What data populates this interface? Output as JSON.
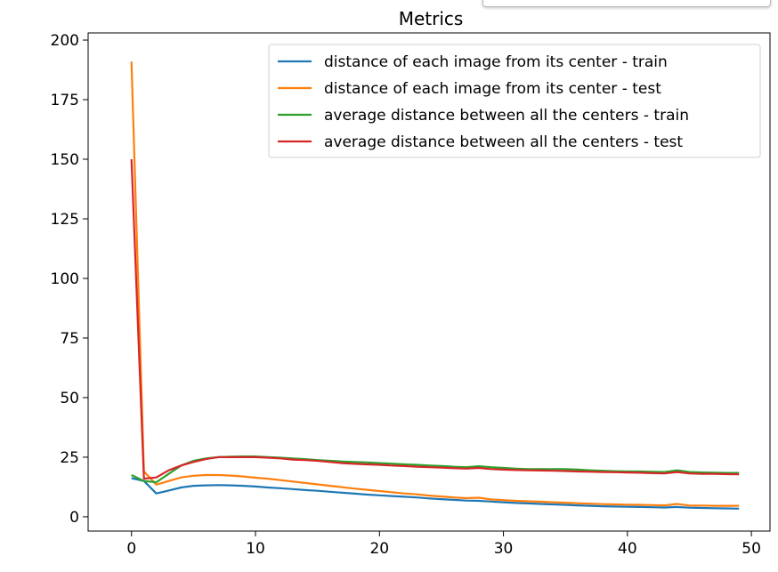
{
  "chart_data": {
    "type": "line",
    "title": "Metrics",
    "xlabel": "",
    "ylabel": "",
    "xlim": [
      -3.5,
      51.5
    ],
    "ylim": [
      -6,
      203
    ],
    "xticks": [
      0,
      10,
      20,
      30,
      40,
      50
    ],
    "yticks": [
      0,
      25,
      50,
      75,
      100,
      125,
      150,
      175,
      200
    ],
    "grid": false,
    "legend_position": "top-right",
    "series": [
      {
        "name": "distance of each image from its center - train",
        "color": "#1f77b4",
        "x": [
          0,
          1,
          2,
          3,
          4,
          5,
          6,
          7,
          8,
          9,
          10,
          11,
          12,
          13,
          14,
          15,
          16,
          17,
          18,
          19,
          20,
          21,
          22,
          23,
          24,
          25,
          26,
          27,
          28,
          29,
          30,
          31,
          32,
          33,
          34,
          35,
          36,
          37,
          38,
          39,
          40,
          41,
          42,
          43,
          44,
          45,
          46,
          47,
          48,
          49
        ],
        "values": [
          16.2,
          15.0,
          9.8,
          11.0,
          12.3,
          13.0,
          13.2,
          13.3,
          13.2,
          13.0,
          12.7,
          12.3,
          12.0,
          11.6,
          11.2,
          10.9,
          10.5,
          10.1,
          9.7,
          9.3,
          9.0,
          8.7,
          8.4,
          8.1,
          7.7,
          7.4,
          7.1,
          6.8,
          6.7,
          6.4,
          6.1,
          5.8,
          5.6,
          5.4,
          5.2,
          5.0,
          4.8,
          4.6,
          4.4,
          4.3,
          4.2,
          4.1,
          4.0,
          3.9,
          4.1,
          3.8,
          3.7,
          3.6,
          3.5,
          3.4
        ]
      },
      {
        "name": "distance of each image from its center - test",
        "color": "#ff7f0e",
        "x": [
          0,
          1,
          2,
          3,
          4,
          5,
          6,
          7,
          8,
          9,
          10,
          11,
          12,
          13,
          14,
          15,
          16,
          17,
          18,
          19,
          20,
          21,
          22,
          23,
          24,
          25,
          26,
          27,
          28,
          29,
          30,
          31,
          32,
          33,
          34,
          35,
          36,
          37,
          38,
          39,
          40,
          41,
          42,
          43,
          44,
          45,
          46,
          47,
          48,
          49
        ],
        "values": [
          191,
          19.0,
          13.5,
          15.0,
          16.5,
          17.2,
          17.5,
          17.5,
          17.3,
          16.9,
          16.4,
          16.0,
          15.4,
          14.8,
          14.2,
          13.6,
          13.0,
          12.4,
          11.8,
          11.3,
          10.8,
          10.3,
          9.8,
          9.4,
          8.9,
          8.5,
          8.1,
          7.8,
          8.0,
          7.3,
          7.0,
          6.7,
          6.5,
          6.3,
          6.1,
          5.9,
          5.7,
          5.5,
          5.3,
          5.2,
          5.1,
          5.0,
          4.9,
          4.8,
          5.4,
          4.7,
          4.7,
          4.6,
          4.6,
          4.6
        ]
      },
      {
        "name": "average distance between all the centers - train",
        "color": "#2ca02c",
        "x": [
          0,
          1,
          2,
          3,
          4,
          5,
          6,
          7,
          8,
          9,
          10,
          11,
          12,
          13,
          14,
          15,
          16,
          17,
          18,
          19,
          20,
          21,
          22,
          23,
          24,
          25,
          26,
          27,
          28,
          29,
          30,
          31,
          32,
          33,
          34,
          35,
          36,
          37,
          38,
          39,
          40,
          41,
          42,
          43,
          44,
          45,
          46,
          47,
          48,
          49
        ],
        "values": [
          17.5,
          15.0,
          14.5,
          18.0,
          21.5,
          23.5,
          24.5,
          25.0,
          25.2,
          25.3,
          25.3,
          25.0,
          24.8,
          24.5,
          24.2,
          23.8,
          23.5,
          23.2,
          23.0,
          22.8,
          22.5,
          22.3,
          22.0,
          21.8,
          21.5,
          21.3,
          21.0,
          20.8,
          21.2,
          20.8,
          20.5,
          20.2,
          20.0,
          20.0,
          20.0,
          20.0,
          19.8,
          19.5,
          19.3,
          19.1,
          19.0,
          19.0,
          18.9,
          18.8,
          19.5,
          18.8,
          18.6,
          18.5,
          18.4,
          18.4
        ]
      },
      {
        "name": "average distance between all the centers - test",
        "color": "#d62728",
        "x": [
          0,
          1,
          2,
          3,
          4,
          5,
          6,
          7,
          8,
          9,
          10,
          11,
          12,
          13,
          14,
          15,
          16,
          17,
          18,
          19,
          20,
          21,
          22,
          23,
          24,
          25,
          26,
          27,
          28,
          29,
          30,
          31,
          32,
          33,
          34,
          35,
          36,
          37,
          38,
          39,
          40,
          41,
          42,
          43,
          44,
          45,
          46,
          47,
          48,
          49
        ],
        "values": [
          150,
          16.0,
          16.5,
          19.5,
          21.5,
          23.0,
          24.2,
          25.0,
          25.0,
          25.0,
          25.0,
          24.8,
          24.5,
          24.0,
          23.8,
          23.5,
          23.0,
          22.5,
          22.2,
          22.0,
          21.8,
          21.5,
          21.3,
          21.0,
          20.8,
          20.6,
          20.4,
          20.2,
          20.5,
          20.0,
          19.8,
          19.6,
          19.5,
          19.4,
          19.3,
          19.2,
          19.0,
          18.9,
          18.8,
          18.7,
          18.6,
          18.5,
          18.3,
          18.2,
          18.8,
          18.2,
          18.0,
          18.0,
          17.9,
          17.8
        ]
      }
    ]
  }
}
